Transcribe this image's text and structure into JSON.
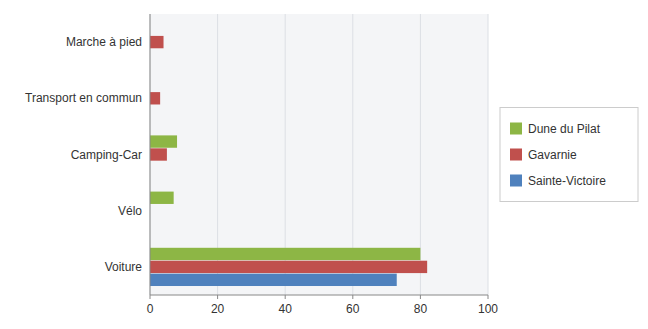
{
  "chart_data": {
    "type": "bar",
    "orientation": "horizontal",
    "categories": [
      "Voiture",
      "Vélo",
      "Camping-Car",
      "Transport en commun",
      "Marche à pied"
    ],
    "series": [
      {
        "name": "Dune du Pilat",
        "color": "#8DB645",
        "values": [
          80,
          7,
          8,
          0,
          0
        ]
      },
      {
        "name": "Gavarnie",
        "color": "#C0504D",
        "values": [
          82,
          0,
          5,
          3,
          4
        ]
      },
      {
        "name": "Sainte-Victoire",
        "color": "#4F81BD",
        "values": [
          73,
          0,
          0,
          0,
          0
        ]
      }
    ],
    "xlim": [
      0,
      100
    ],
    "xticks": [
      0,
      20,
      40,
      60,
      80,
      100
    ],
    "grid": true,
    "legend": "right"
  }
}
